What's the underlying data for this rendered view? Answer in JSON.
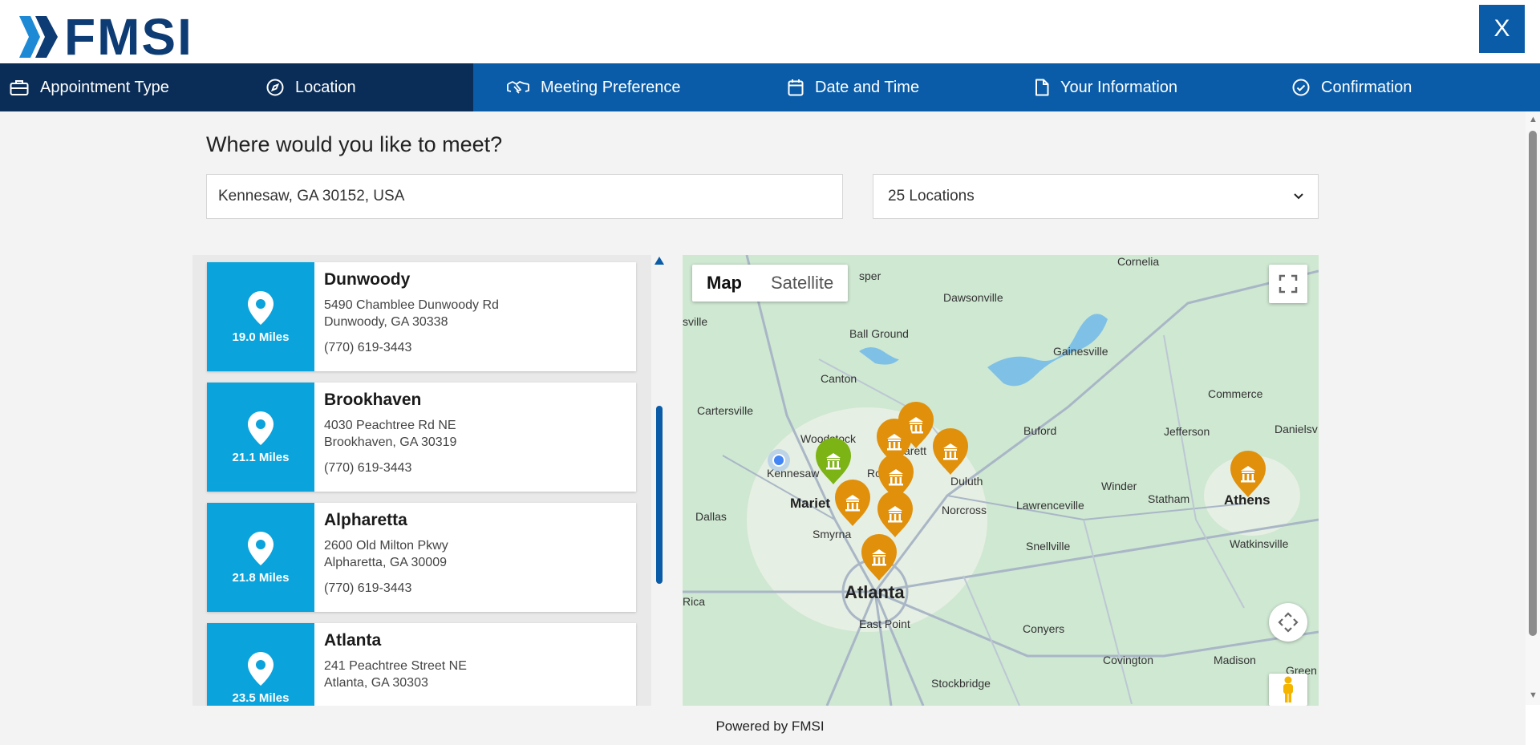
{
  "app": {
    "brand": "FMSI",
    "close_label": "X",
    "footer": "Powered by FMSI"
  },
  "steps": [
    {
      "label": "Appointment Type",
      "icon": "briefcase-icon"
    },
    {
      "label": "Location",
      "icon": "compass-icon"
    },
    {
      "label": "Meeting Preference",
      "icon": "handshake-icon"
    },
    {
      "label": "Date and Time",
      "icon": "calendar-icon"
    },
    {
      "label": "Your Information",
      "icon": "document-icon"
    },
    {
      "label": "Confirmation",
      "icon": "check-circle-icon"
    }
  ],
  "page": {
    "heading": "Where would you like to meet?",
    "search_value": "Kennesaw, GA 30152, USA",
    "locations_select": "25 Locations"
  },
  "locations": [
    {
      "name": "Dunwoody",
      "miles": "19.0 Miles",
      "street": "5490 Chamblee Dunwoody Rd",
      "city": "Dunwoody, GA 30338",
      "phone": "(770) 619-3443"
    },
    {
      "name": "Brookhaven",
      "miles": "21.1 Miles",
      "street": "4030 Peachtree Rd NE",
      "city": "Brookhaven, GA 30319",
      "phone": "(770) 619-3443"
    },
    {
      "name": "Alpharetta",
      "miles": "21.8 Miles",
      "street": "2600 Old Milton Pkwy",
      "city": "Alpharetta, GA 30009",
      "phone": "(770) 619-3443"
    },
    {
      "name": "Atlanta",
      "miles": "23.5 Miles",
      "street": "241 Peachtree Street NE",
      "city": "Atlanta, GA 30303",
      "phone": ""
    }
  ],
  "map": {
    "toggle_map": "Map",
    "toggle_satellite": "Satellite",
    "labels": {
      "cornelia": "Cornelia",
      "dawsonville": "Dawsonville",
      "ball_ground": "Ball Ground",
      "gainesville": "Gainesville",
      "canton": "Canton",
      "cartersville": "Cartersville",
      "commerce": "Commerce",
      "buford": "Buford",
      "jefferson": "Jefferson",
      "danielsv": "Danielsv",
      "woodstock": "Woodstock",
      "kennesaw": "Kennesaw",
      "duluth": "Duluth",
      "winder": "Winder",
      "statham": "Statham",
      "athens": "Athens",
      "dallas": "Dallas",
      "mariet": "Mariet",
      "norcross": "Norcross",
      "lawrenceville": "Lawrenceville",
      "smyrna": "Smyrna",
      "snellville": "Snellville",
      "watkinsville": "Watkinsville",
      "atlanta": "Atlanta",
      "rica": "Rica",
      "east_point": "East Point",
      "conyers": "Conyers",
      "covington": "Covington",
      "madison": "Madison",
      "green": "Green",
      "stockbridge": "Stockbridge",
      "ro": "Ro",
      "arett": "arett",
      "sper": "sper",
      "sville": "sville"
    },
    "colors": {
      "pin_orange": "#e0900b",
      "pin_green": "#7cb315",
      "water": "#7fc1e6",
      "road": "#a9b6c6"
    }
  }
}
